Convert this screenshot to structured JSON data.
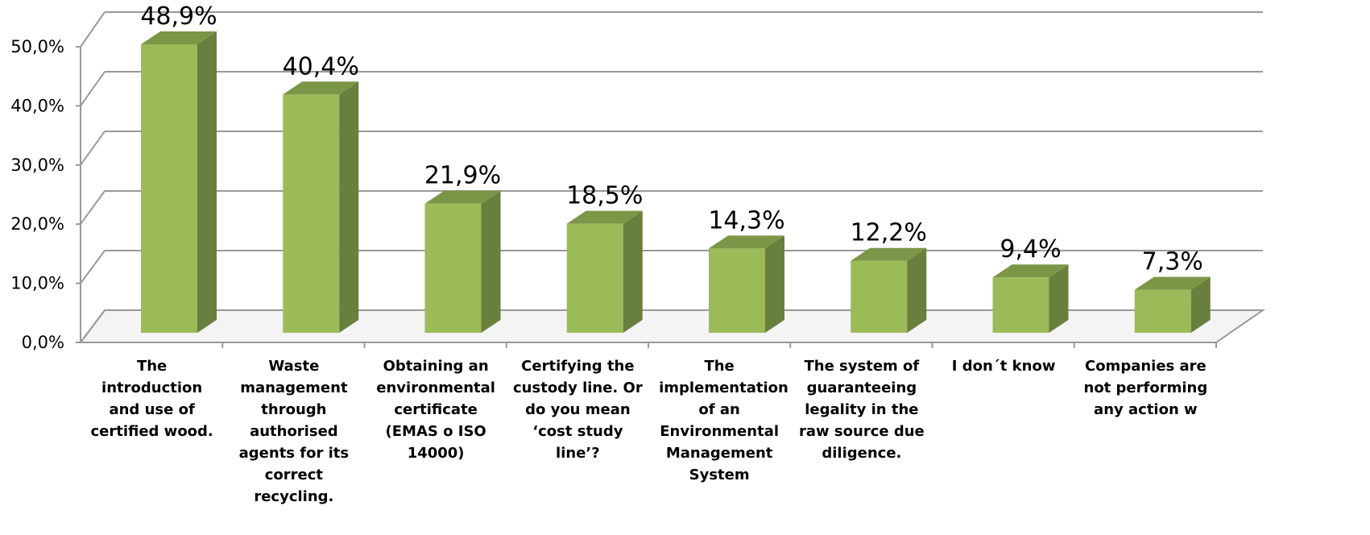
{
  "chart_data": {
    "type": "bar3d",
    "categories": [
      "The introduction and use of certified wood.",
      "Waste management through authorised agents for its correct recycling.",
      "Obtaining an environmental certificate (EMAS o ISO 14000)",
      "Certifying the custody line. Or do you mean ‘cost study line’?",
      "The implementation of an Environmental Management System",
      "The system of guaranteeing legality in the raw source due diligence.",
      "I don´t know",
      "Companies are not performing any action w"
    ],
    "values": [
      48.9,
      40.4,
      21.9,
      18.5,
      14.3,
      12.2,
      9.4,
      7.3
    ],
    "value_labels": [
      "48,9%",
      "40,4%",
      "21,9%",
      "18,5%",
      "14,3%",
      "12,2%",
      "9,4%",
      "7,3%"
    ],
    "color": "#9bbb59",
    "ylim": [
      0,
      50
    ],
    "yticks": [
      {
        "value": 0,
        "label": "0,0%"
      },
      {
        "value": 10,
        "label": "10,0%"
      },
      {
        "value": 20,
        "label": "20,0%"
      },
      {
        "value": 30,
        "label": "30,0%"
      },
      {
        "value": 40,
        "label": "40,0%"
      },
      {
        "value": 50,
        "label": "50,0%"
      }
    ],
    "grid": true
  }
}
